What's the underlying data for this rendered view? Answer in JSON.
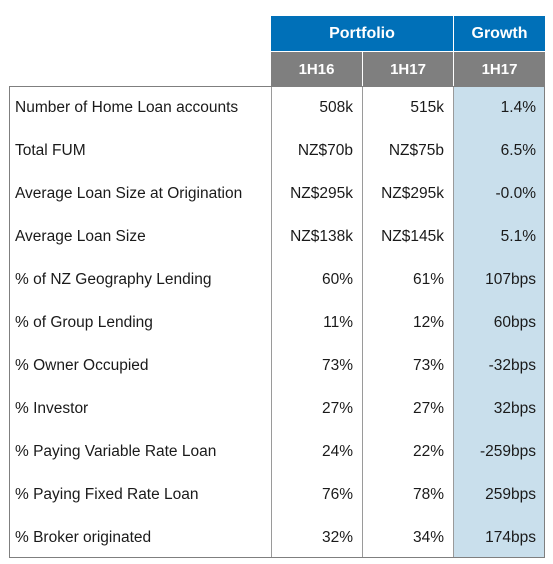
{
  "header": {
    "portfolio": "Portfolio",
    "growth": "Growth",
    "col_1h16": "1H16",
    "col_1h17": "1H17",
    "col_growth": "1H17"
  },
  "rows": [
    {
      "label": "Number of Home Loan accounts",
      "h16": "508k",
      "h17": "515k",
      "growth": "1.4%"
    },
    {
      "label": "Total FUM",
      "h16": "NZ$70b",
      "h17": "NZ$75b",
      "growth": "6.5%"
    },
    {
      "label": "Average Loan Size at Origination",
      "h16": "NZ$295k",
      "h17": "NZ$295k",
      "growth": "-0.0%"
    },
    {
      "label": "Average Loan Size",
      "h16": "NZ$138k",
      "h17": "NZ$145k",
      "growth": "5.1%"
    },
    {
      "label": "% of NZ Geography Lending",
      "h16": "60%",
      "h17": "61%",
      "growth": "107bps"
    },
    {
      "label": "% of Group Lending",
      "h16": "11%",
      "h17": "12%",
      "growth": "60bps"
    },
    {
      "label": "% Owner Occupied",
      "h16": "73%",
      "h17": "73%",
      "growth": "-32bps"
    },
    {
      "label": "% Investor",
      "h16": "27%",
      "h17": "27%",
      "growth": "32bps"
    },
    {
      "label": "% Paying Variable Rate Loan",
      "h16": "24%",
      "h17": "22%",
      "growth": "-259bps"
    },
    {
      "label": "% Paying Fixed Rate Loan",
      "h16": "76%",
      "h17": "78%",
      "growth": "259bps"
    },
    {
      "label": "% Broker originated",
      "h16": "32%",
      "h17": "34%",
      "growth": "174bps"
    }
  ],
  "colors": {
    "header_blue": "#0070b8",
    "subheader_gray": "#7f7f7f",
    "growth_shade": "#c9dfec"
  }
}
